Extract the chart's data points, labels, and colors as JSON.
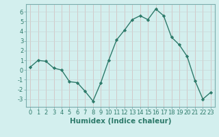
{
  "x": [
    0,
    1,
    2,
    3,
    4,
    5,
    6,
    7,
    8,
    9,
    10,
    11,
    12,
    13,
    14,
    15,
    16,
    17,
    18,
    19,
    20,
    21,
    22,
    23
  ],
  "y": [
    0.3,
    1.0,
    0.9,
    0.2,
    0.0,
    -1.2,
    -1.3,
    -2.2,
    -3.2,
    -1.3,
    1.0,
    3.1,
    4.1,
    5.2,
    5.6,
    5.2,
    6.3,
    5.6,
    3.4,
    2.6,
    1.4,
    -1.1,
    -3.0,
    -2.3
  ],
  "line_color": "#2d7a6a",
  "marker": "D",
  "marker_size": 2.2,
  "bg_color": "#d3efee",
  "grid_color": "#c0d8d8",
  "xlabel": "Humidex (Indice chaleur)",
  "xlabel_fontsize": 7.5,
  "tick_fontsize": 6.0,
  "xlim": [
    -0.5,
    23.5
  ],
  "ylim": [
    -3.8,
    6.8
  ],
  "yticks": [
    -3,
    -2,
    -1,
    0,
    1,
    2,
    3,
    4,
    5,
    6
  ],
  "xticks": [
    0,
    1,
    2,
    3,
    4,
    5,
    6,
    7,
    8,
    9,
    10,
    11,
    12,
    13,
    14,
    15,
    16,
    17,
    18,
    19,
    20,
    21,
    22,
    23
  ],
  "spine_color": "#7aacac",
  "tick_color": "#2d7a6a"
}
